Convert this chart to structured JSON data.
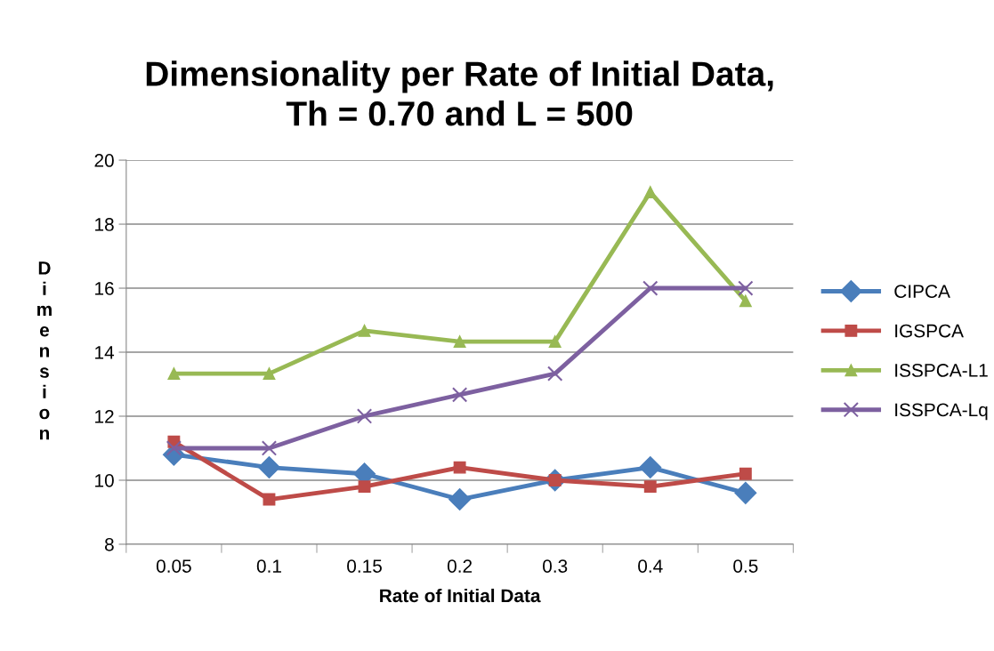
{
  "chart_data": {
    "type": "line",
    "title": "Dimensionality per Rate of Initial Data,\nTh = 0.70 and L = 500",
    "xlabel": "Rate of Initial Data",
    "ylabel": "Dimension",
    "categories": [
      "0.05",
      "0.1",
      "0.15",
      "0.2",
      "0.3",
      "0.4",
      "0.5"
    ],
    "series": [
      {
        "name": "CIPCA",
        "color": "#4a7ebb",
        "marker": "diamond",
        "values": [
          10.8,
          10.4,
          10.2,
          9.4,
          10.0,
          10.4,
          9.6
        ]
      },
      {
        "name": "IGSPCA",
        "color": "#be4b48",
        "marker": "square",
        "values": [
          11.2,
          9.4,
          9.8,
          10.4,
          10.0,
          9.8,
          10.2
        ]
      },
      {
        "name": "ISSPCA-L1",
        "color": "#98b954",
        "marker": "triangle",
        "values": [
          13.33,
          13.33,
          14.67,
          14.33,
          14.33,
          19.0,
          15.6
        ]
      },
      {
        "name": "ISSPCA-Lq",
        "color": "#7d60a0",
        "marker": "cross",
        "values": [
          11.0,
          11.0,
          12.0,
          12.67,
          13.33,
          16.0,
          16.0
        ]
      }
    ],
    "ylim": [
      8,
      20
    ],
    "yticks": [
      8,
      10,
      12,
      14,
      16,
      18,
      20
    ],
    "grid": "y",
    "legend": "right",
    "line_style": "solid"
  }
}
